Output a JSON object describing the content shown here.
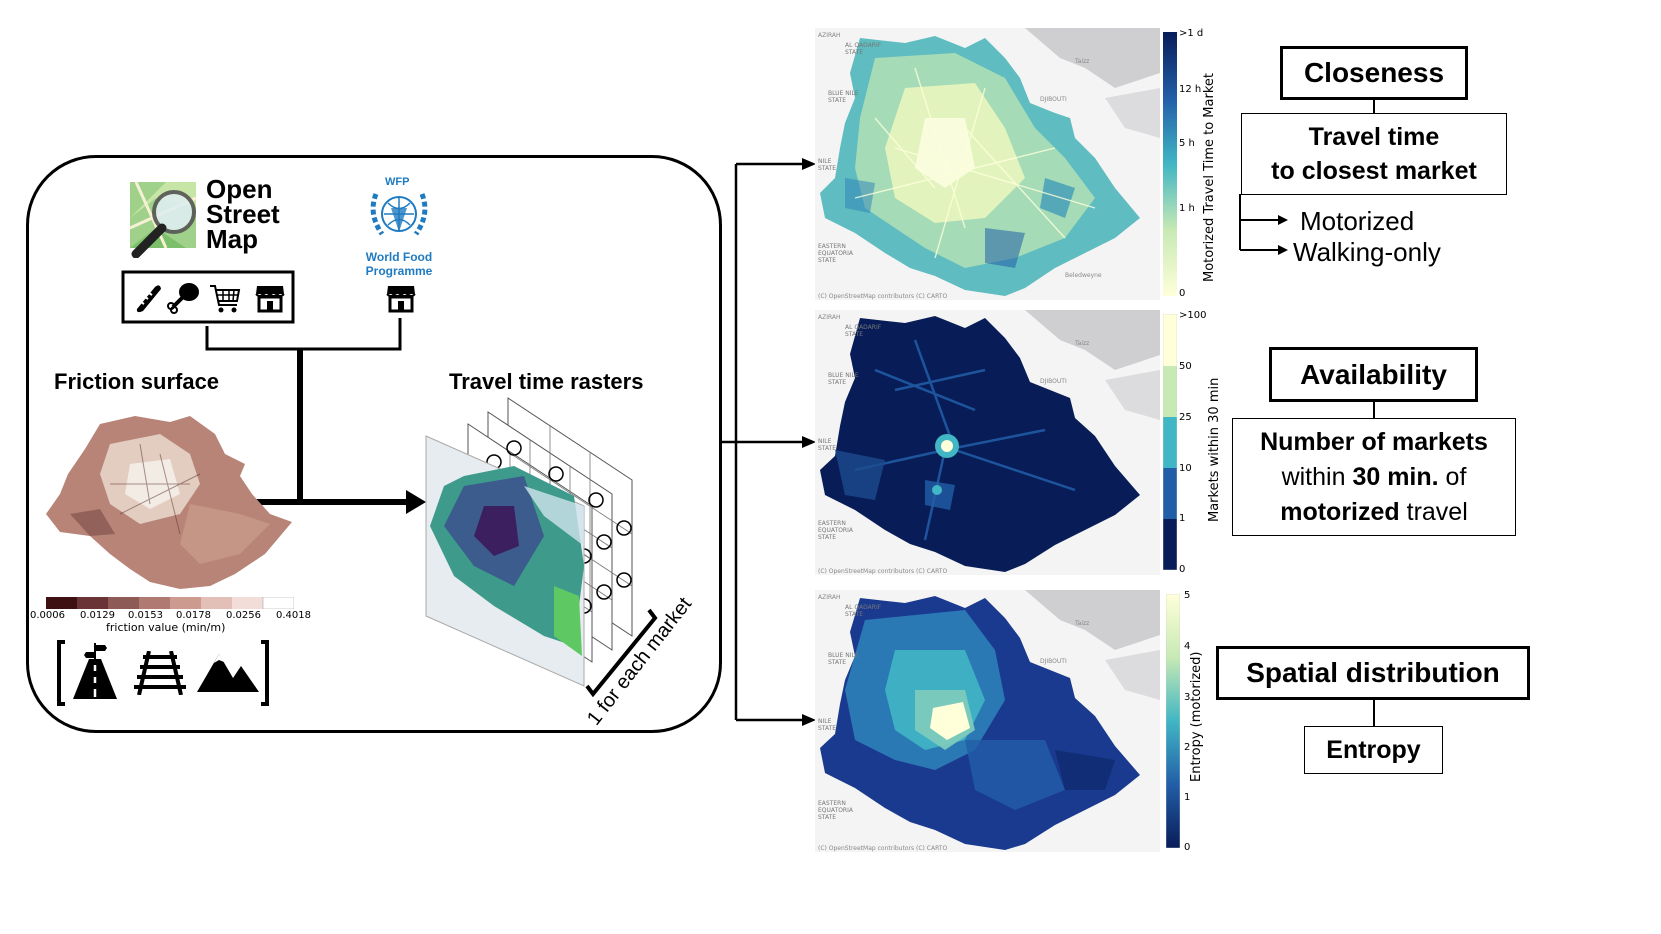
{
  "osm": {
    "logo_line1": "Open",
    "logo_line2": "Street",
    "logo_line3": "Map",
    "icons": [
      "bread-icon",
      "chicken-leg-icon",
      "shopping-cart-icon",
      "store-icon"
    ]
  },
  "wfp": {
    "logo_abbr": "WFP",
    "name_line1": "World Food",
    "name_line2": "Programme",
    "icons": [
      "store-icon"
    ]
  },
  "friction": {
    "title": "Friction surface",
    "colorbar_ticks": [
      "0.0006",
      "0.0129",
      "0.0153",
      "0.0178",
      "0.0256",
      "0.4018"
    ],
    "colorbar_label": "friction value (min/m)",
    "colorbar_colors": [
      "#3f1011",
      "#6a3436",
      "#8e5a55",
      "#b07a72",
      "#cd9a90",
      "#e2bfb7",
      "#f3ddd8",
      "#ffffff"
    ],
    "factor_icons": [
      "road-icon",
      "railway-icon",
      "mountain-icon"
    ]
  },
  "travel": {
    "title": "Travel time rasters",
    "stack_label": "1 for each market"
  },
  "maps": [
    {
      "colorbar_label": "Motorized Travel Time to Market",
      "ticks": [
        ">1 d",
        "12 h",
        "5 h",
        "1 h",
        "0"
      ],
      "credit": "(C) OpenStreetMap contributors (C) CARTO"
    },
    {
      "colorbar_label": "Markets within 30 min",
      "ticks": [
        ">100",
        "50",
        "25",
        "10",
        "1",
        "0"
      ],
      "credit": "(C) OpenStreetMap contributors (C) CARTO"
    },
    {
      "colorbar_label": "Entropy (motorized)",
      "ticks": [
        "5",
        "4",
        "3",
        "2",
        "1",
        "0"
      ],
      "credit": "(C) OpenStreetMap contributors (C) CARTO"
    }
  ],
  "place_labels": {
    "qadarif": "AL QADARIF\nSTATE",
    "blue_nile": "BLUE NILE\nSTATE",
    "eastern_equatoria": "EASTERN\nEQUATORIA\nSTATE",
    "nile": "NILE\nSTATE",
    "djibouti": "DJIBOUTI",
    "zirah": "AZIRAH",
    "taiz": "Taizz",
    "belet": "Beledweyne"
  },
  "metrics": {
    "closeness": {
      "title": "Closeness",
      "sub_line1": "Travel time",
      "sub_line2": "to closest market",
      "modes": [
        "Motorized",
        "Walking-only"
      ]
    },
    "availability": {
      "title": "Availability",
      "line1": "Number of markets",
      "line2_pre": "within ",
      "line2_bold": "30 min.",
      "line2_post": " of",
      "line3_bold": "motorized",
      "line3_post": " travel"
    },
    "spatial": {
      "title": "Spatial distribution",
      "sub": "Entropy"
    }
  },
  "colors": {
    "yellow": "#ffffd9",
    "light_green": "#c7e9b4",
    "teal": "#41b6c4",
    "blue": "#225ea8",
    "navy": "#081d58",
    "wfp_blue": "#1f7bc1"
  }
}
